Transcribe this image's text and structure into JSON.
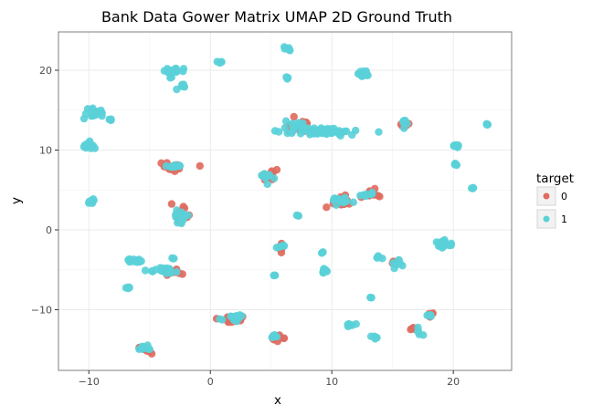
{
  "chart_data": {
    "type": "scatter",
    "title": "Bank Data Gower Matrix UMAP 2D Ground Truth",
    "xlabel": "x",
    "ylabel": "y",
    "xlim": [
      -12.5,
      24.8
    ],
    "ylim": [
      -17.6,
      24.8
    ],
    "x_ticks": [
      -10,
      0,
      10,
      20
    ],
    "y_ticks": [
      -10,
      0,
      10,
      20
    ],
    "x_tick_labels": [
      "−10",
      "0",
      "10",
      "20"
    ],
    "y_tick_labels": [
      "−10",
      "0",
      "10",
      "20"
    ],
    "grid": true,
    "legend": {
      "title": "target",
      "position": "right",
      "entries": [
        {
          "label": "0",
          "color": "#e06b5f"
        },
        {
          "label": "1",
          "color": "#5ad0d8"
        }
      ]
    },
    "series": [
      {
        "name": "0",
        "color": "#e06b5f",
        "clusters": [
          {
            "x": -3.0,
            "y": 7.9,
            "sx": 1.0,
            "sy": 0.5,
            "n": 26
          },
          {
            "x": -2.5,
            "y": 1.8,
            "sx": 0.6,
            "sy": 0.9,
            "n": 18
          },
          {
            "x": 4.8,
            "y": 6.8,
            "sx": 0.7,
            "sy": 0.6,
            "n": 14
          },
          {
            "x": 7.2,
            "y": 12.9,
            "sx": 1.1,
            "sy": 0.7,
            "n": 14
          },
          {
            "x": 10.8,
            "y": 3.5,
            "sx": 1.2,
            "sy": 0.8,
            "n": 24
          },
          {
            "x": 13.3,
            "y": 4.6,
            "sx": 0.5,
            "sy": 0.5,
            "n": 10
          },
          {
            "x": 15.8,
            "y": 13.1,
            "sx": 0.5,
            "sy": 0.2,
            "n": 7
          },
          {
            "x": 5.8,
            "y": -2.3,
            "sx": 0.4,
            "sy": 0.6,
            "n": 8
          },
          {
            "x": -3.0,
            "y": -5.3,
            "sx": 0.7,
            "sy": 0.5,
            "n": 12
          },
          {
            "x": 2.0,
            "y": -11.2,
            "sx": 1.2,
            "sy": 0.4,
            "n": 22
          },
          {
            "x": 5.6,
            "y": -13.6,
            "sx": 0.6,
            "sy": 0.4,
            "n": 12
          },
          {
            "x": -5.3,
            "y": -15.0,
            "sx": 0.5,
            "sy": 0.4,
            "n": 12
          },
          {
            "x": 15.2,
            "y": -4.0,
            "sx": 0.4,
            "sy": 0.4,
            "n": 6
          },
          {
            "x": 18.2,
            "y": -10.5,
            "sx": 0.3,
            "sy": 0.3,
            "n": 5
          },
          {
            "x": 16.8,
            "y": -12.4,
            "sx": 0.3,
            "sy": 0.2,
            "n": 4
          }
        ]
      },
      {
        "name": "1",
        "color": "#5ad0d8",
        "clusters": [
          {
            "x": -9.5,
            "y": 14.7,
            "sx": 0.6,
            "sy": 0.4,
            "n": 22
          },
          {
            "x": -10.0,
            "y": 10.6,
            "sx": 0.5,
            "sy": 0.3,
            "n": 18
          },
          {
            "x": -9.8,
            "y": 3.6,
            "sx": 0.3,
            "sy": 0.3,
            "n": 7
          },
          {
            "x": -3.0,
            "y": 19.8,
            "sx": 0.8,
            "sy": 0.6,
            "n": 18
          },
          {
            "x": -2.3,
            "y": 18.0,
            "sx": 0.2,
            "sy": 0.3,
            "n": 6
          },
          {
            "x": -8.2,
            "y": 13.8,
            "sx": 0.2,
            "sy": 0.2,
            "n": 4
          },
          {
            "x": 0.8,
            "y": 21.0,
            "sx": 0.2,
            "sy": 0.1,
            "n": 4
          },
          {
            "x": 6.5,
            "y": 22.6,
            "sx": 0.4,
            "sy": 0.3,
            "n": 7
          },
          {
            "x": 6.4,
            "y": 19.2,
            "sx": 0.2,
            "sy": 0.2,
            "n": 4
          },
          {
            "x": 12.6,
            "y": 19.6,
            "sx": 0.4,
            "sy": 0.4,
            "n": 16
          },
          {
            "x": 9.0,
            "y": 12.3,
            "sx": 2.8,
            "sy": 0.4,
            "n": 70
          },
          {
            "x": 7.0,
            "y": 13.2,
            "sx": 0.8,
            "sy": 0.5,
            "n": 14
          },
          {
            "x": 16.0,
            "y": 13.4,
            "sx": 0.5,
            "sy": 0.3,
            "n": 6
          },
          {
            "x": 22.8,
            "y": 13.2,
            "sx": 0.1,
            "sy": 0.1,
            "n": 4
          },
          {
            "x": 20.2,
            "y": 10.5,
            "sx": 0.3,
            "sy": 0.3,
            "n": 9
          },
          {
            "x": 20.2,
            "y": 8.2,
            "sx": 0.2,
            "sy": 0.2,
            "n": 5
          },
          {
            "x": 21.6,
            "y": 5.2,
            "sx": 0.1,
            "sy": 0.1,
            "n": 4
          },
          {
            "x": -3.0,
            "y": 8.0,
            "sx": 0.5,
            "sy": 0.3,
            "n": 10
          },
          {
            "x": -2.4,
            "y": 1.6,
            "sx": 0.5,
            "sy": 0.7,
            "n": 14
          },
          {
            "x": 4.7,
            "y": 6.6,
            "sx": 0.5,
            "sy": 0.5,
            "n": 12
          },
          {
            "x": 7.2,
            "y": 1.8,
            "sx": 0.1,
            "sy": 0.1,
            "n": 3
          },
          {
            "x": 10.9,
            "y": 3.7,
            "sx": 1.0,
            "sy": 0.5,
            "n": 16
          },
          {
            "x": 12.6,
            "y": 4.3,
            "sx": 0.6,
            "sy": 0.2,
            "n": 6
          },
          {
            "x": 13.3,
            "y": 4.6,
            "sx": 0.2,
            "sy": 0.2,
            "n": 3
          },
          {
            "x": -6.2,
            "y": -3.9,
            "sx": 0.6,
            "sy": 0.3,
            "n": 12
          },
          {
            "x": -4.0,
            "y": -5.1,
            "sx": 1.0,
            "sy": 0.4,
            "n": 24
          },
          {
            "x": -3.0,
            "y": -3.6,
            "sx": 0.2,
            "sy": 0.2,
            "n": 3
          },
          {
            "x": -6.8,
            "y": -7.2,
            "sx": 0.3,
            "sy": 0.1,
            "n": 5
          },
          {
            "x": 5.8,
            "y": -2.1,
            "sx": 0.5,
            "sy": 0.3,
            "n": 6
          },
          {
            "x": 5.3,
            "y": -5.7,
            "sx": 0.1,
            "sy": 0.1,
            "n": 3
          },
          {
            "x": 9.2,
            "y": -2.8,
            "sx": 0.1,
            "sy": 0.1,
            "n": 3
          },
          {
            "x": 9.4,
            "y": -5.1,
            "sx": 0.3,
            "sy": 0.4,
            "n": 8
          },
          {
            "x": 13.8,
            "y": -3.4,
            "sx": 0.3,
            "sy": 0.2,
            "n": 5
          },
          {
            "x": 15.5,
            "y": -4.1,
            "sx": 0.5,
            "sy": 0.5,
            "n": 9
          },
          {
            "x": 19.2,
            "y": -1.7,
            "sx": 0.5,
            "sy": 0.5,
            "n": 18
          },
          {
            "x": 13.2,
            "y": -8.5,
            "sx": 0.1,
            "sy": 0.1,
            "n": 3
          },
          {
            "x": 2.0,
            "y": -11.1,
            "sx": 0.9,
            "sy": 0.4,
            "n": 16
          },
          {
            "x": 5.4,
            "y": -13.3,
            "sx": 0.4,
            "sy": 0.3,
            "n": 8
          },
          {
            "x": 11.4,
            "y": -11.9,
            "sx": 0.4,
            "sy": 0.2,
            "n": 6
          },
          {
            "x": 13.5,
            "y": -13.4,
            "sx": 0.3,
            "sy": 0.2,
            "n": 5
          },
          {
            "x": -5.3,
            "y": -14.8,
            "sx": 0.5,
            "sy": 0.3,
            "n": 10
          },
          {
            "x": 17.3,
            "y": -13.0,
            "sx": 0.4,
            "sy": 0.5,
            "n": 6
          },
          {
            "x": 18.0,
            "y": -10.8,
            "sx": 0.2,
            "sy": 0.2,
            "n": 4
          }
        ]
      }
    ]
  }
}
